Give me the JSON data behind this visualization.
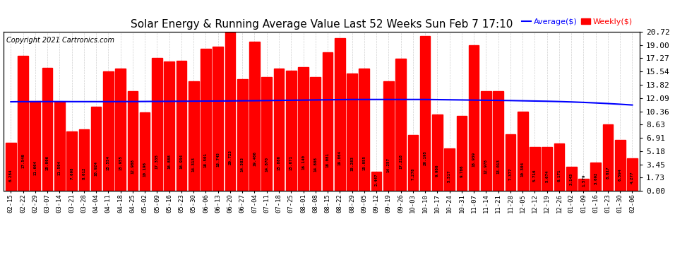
{
  "title": "Solar Energy & Running Average Value Last 52 Weeks Sun Feb 7 17:10",
  "copyright": "Copyright 2021 Cartronics.com",
  "bar_color": "#ff0000",
  "avg_line_color": "#0000ff",
  "background_color": "#ffffff",
  "grid_color": "#888888",
  "ylim": [
    0.0,
    20.72
  ],
  "yticks": [
    0.0,
    1.73,
    3.45,
    5.18,
    6.91,
    8.63,
    10.36,
    12.09,
    13.82,
    15.54,
    17.27,
    19.0,
    20.72
  ],
  "legend_avg_label": "Average($)",
  "legend_weekly_label": "Weekly($)",
  "legend_avg_color": "#0000ff",
  "legend_weekly_color": "#ff0000",
  "dates": [
    "02-15",
    "02-22",
    "02-29",
    "03-07",
    "03-14",
    "03-21",
    "03-28",
    "04-04",
    "04-11",
    "04-18",
    "04-25",
    "05-02",
    "05-09",
    "05-16",
    "05-23",
    "05-30",
    "06-06",
    "06-13",
    "06-20",
    "06-27",
    "07-04",
    "07-11",
    "07-18",
    "07-25",
    "08-01",
    "08-08",
    "08-15",
    "08-22",
    "08-29",
    "09-05",
    "09-12",
    "09-19",
    "09-26",
    "10-03",
    "10-10",
    "10-17",
    "10-24",
    "10-31",
    "11-07",
    "11-14",
    "11-21",
    "11-28",
    "12-05",
    "12-12",
    "12-19",
    "12-26",
    "01-02",
    "01-09",
    "01-16",
    "01-23",
    "01-30",
    "02-06"
  ],
  "weekly_values": [
    6.284,
    17.549,
    11.664,
    15.996,
    11.594,
    7.698,
    8.012,
    10.924,
    15.554,
    15.955,
    12.988,
    10.196,
    17.335,
    16.888,
    16.934,
    14.313,
    18.501,
    18.745,
    20.723,
    14.583,
    19.406,
    14.87,
    15.886,
    15.671,
    16.14,
    14.808,
    18.081,
    19.864,
    15.283,
    15.955,
    2.447,
    14.257,
    17.218,
    7.278,
    20.195,
    9.986,
    5.517,
    9.786,
    18.939,
    12.978,
    13.013,
    7.377,
    10.304,
    5.716,
    5.674,
    6.171,
    3.143,
    1.579,
    3.692,
    8.617,
    6.594,
    4.277
  ],
  "avg_values": [
    11.6,
    11.62,
    11.62,
    11.63,
    11.63,
    11.62,
    11.62,
    11.62,
    11.62,
    11.63,
    11.63,
    11.64,
    11.65,
    11.66,
    11.67,
    11.68,
    11.69,
    11.7,
    11.71,
    11.73,
    11.74,
    11.76,
    11.78,
    11.8,
    11.82,
    11.84,
    11.86,
    11.88,
    11.9,
    11.9,
    11.9,
    11.9,
    11.9,
    11.9,
    11.9,
    11.9,
    11.9,
    11.9,
    11.9,
    11.9,
    11.9,
    11.89,
    11.88,
    11.87,
    11.85,
    11.83,
    11.8,
    11.76,
    11.72,
    11.65,
    11.58,
    11.5
  ],
  "avg_values_corrected": [
    11.6,
    11.62,
    11.62,
    11.63,
    11.63,
    11.62,
    11.62,
    11.62,
    11.62,
    11.63,
    11.63,
    11.64,
    11.65,
    11.66,
    11.67,
    11.68,
    11.69,
    11.7,
    11.71,
    11.73,
    11.74,
    11.76,
    11.78,
    11.8,
    11.82,
    11.84,
    11.86,
    11.88,
    11.9,
    11.9,
    11.9,
    11.9,
    11.9,
    11.9,
    11.9,
    11.88,
    11.86,
    11.84,
    11.82,
    11.8,
    11.78,
    11.76,
    11.73,
    11.7,
    11.67,
    11.63,
    11.58,
    11.52,
    11.45,
    11.37,
    11.28,
    11.18
  ]
}
